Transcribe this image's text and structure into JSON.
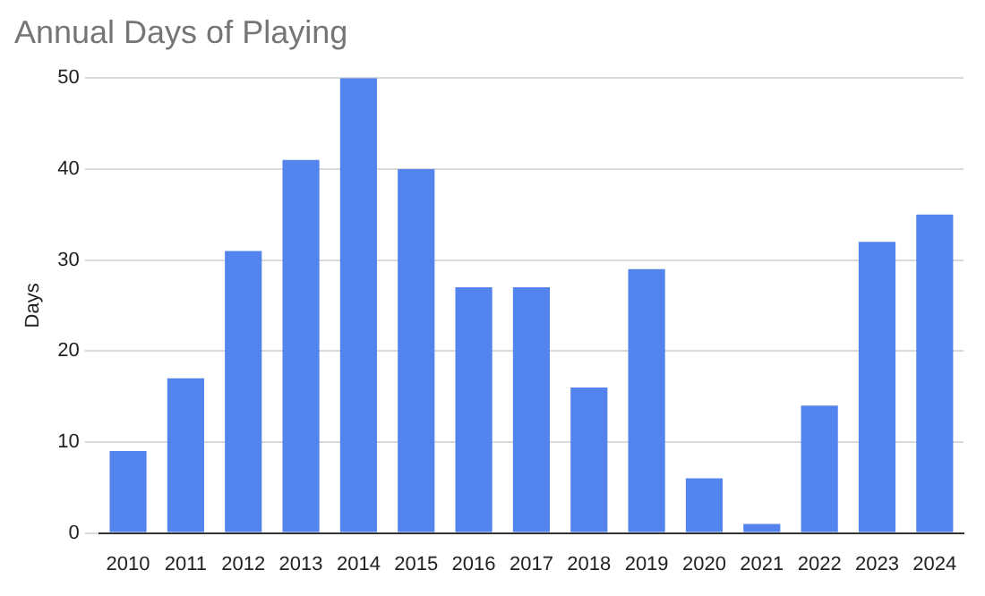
{
  "chart_data": {
    "type": "bar",
    "title": "Annual Days of Playing",
    "ylabel": "Days",
    "categories": [
      "2010",
      "2011",
      "2012",
      "2013",
      "2014",
      "2015",
      "2016",
      "2017",
      "2018",
      "2019",
      "2020",
      "2021",
      "2022",
      "2023",
      "2024"
    ],
    "values": [
      9,
      17,
      31,
      41,
      50,
      40,
      27,
      27,
      16,
      29,
      6,
      1,
      14,
      32,
      35
    ],
    "color": "#5383ec",
    "ylim": [
      0,
      50
    ],
    "yticks": [
      0,
      10,
      20,
      30,
      40,
      50
    ],
    "grid": "y",
    "legend": false
  }
}
